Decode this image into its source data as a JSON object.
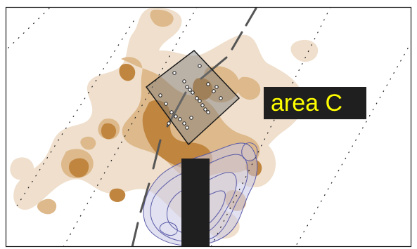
{
  "map": {
    "area_label": "area C",
    "colors": {
      "frame": "#1a1a1a",
      "density_light": "#efdfcc",
      "density_mid": "#ddb98b",
      "density_dark": "#c0853f",
      "contour_blue": "#5a5aa8",
      "contour_fill": "#c9c9e6",
      "label_bg": "#1f1f1f",
      "label_text": "#ffff00",
      "rect_fill": "#7a7a7a",
      "block": "#1f1f1f"
    }
  }
}
